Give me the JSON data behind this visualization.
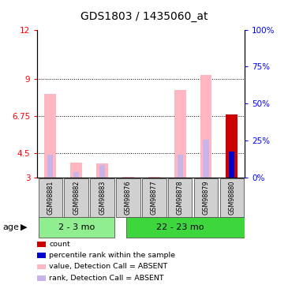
{
  "title": "GDS1803 / 1435060_at",
  "samples": [
    "GSM98881",
    "GSM98882",
    "GSM98883",
    "GSM98876",
    "GSM98877",
    "GSM98878",
    "GSM98879",
    "GSM98880"
  ],
  "group1_count": 3,
  "group2_count": 5,
  "group1_label": "2 - 3 mo",
  "group2_label": "22 - 23 mo",
  "group1_color": "#90ee90",
  "group2_color": "#3dd63d",
  "value_absent": [
    8.1,
    3.9,
    3.85,
    3.05,
    3.05,
    8.35,
    9.25,
    0
  ],
  "rank_absent": [
    4.4,
    3.35,
    3.75,
    0,
    0,
    4.4,
    5.3,
    0
  ],
  "count_value": [
    0,
    0,
    0,
    0,
    0,
    0,
    0,
    6.85
  ],
  "percentile_present": [
    0,
    0,
    0,
    0,
    0,
    0,
    0,
    4.6
  ],
  "ylim_left": [
    3,
    12
  ],
  "ylim_right": [
    0,
    100
  ],
  "yticks_left": [
    3,
    4.5,
    6.75,
    9,
    12
  ],
  "yticks_right": [
    0,
    25,
    50,
    75,
    100
  ],
  "absent_value_color": "#ffb6c1",
  "absent_rank_color": "#c8b4e8",
  "count_color": "#cc0000",
  "present_rank_color": "#0000cc",
  "legend_items": [
    {
      "color": "#cc0000",
      "label": "count"
    },
    {
      "color": "#0000cc",
      "label": "percentile rank within the sample"
    },
    {
      "color": "#ffb6c1",
      "label": "value, Detection Call = ABSENT"
    },
    {
      "color": "#c8b4e8",
      "label": "rank, Detection Call = ABSENT"
    }
  ]
}
